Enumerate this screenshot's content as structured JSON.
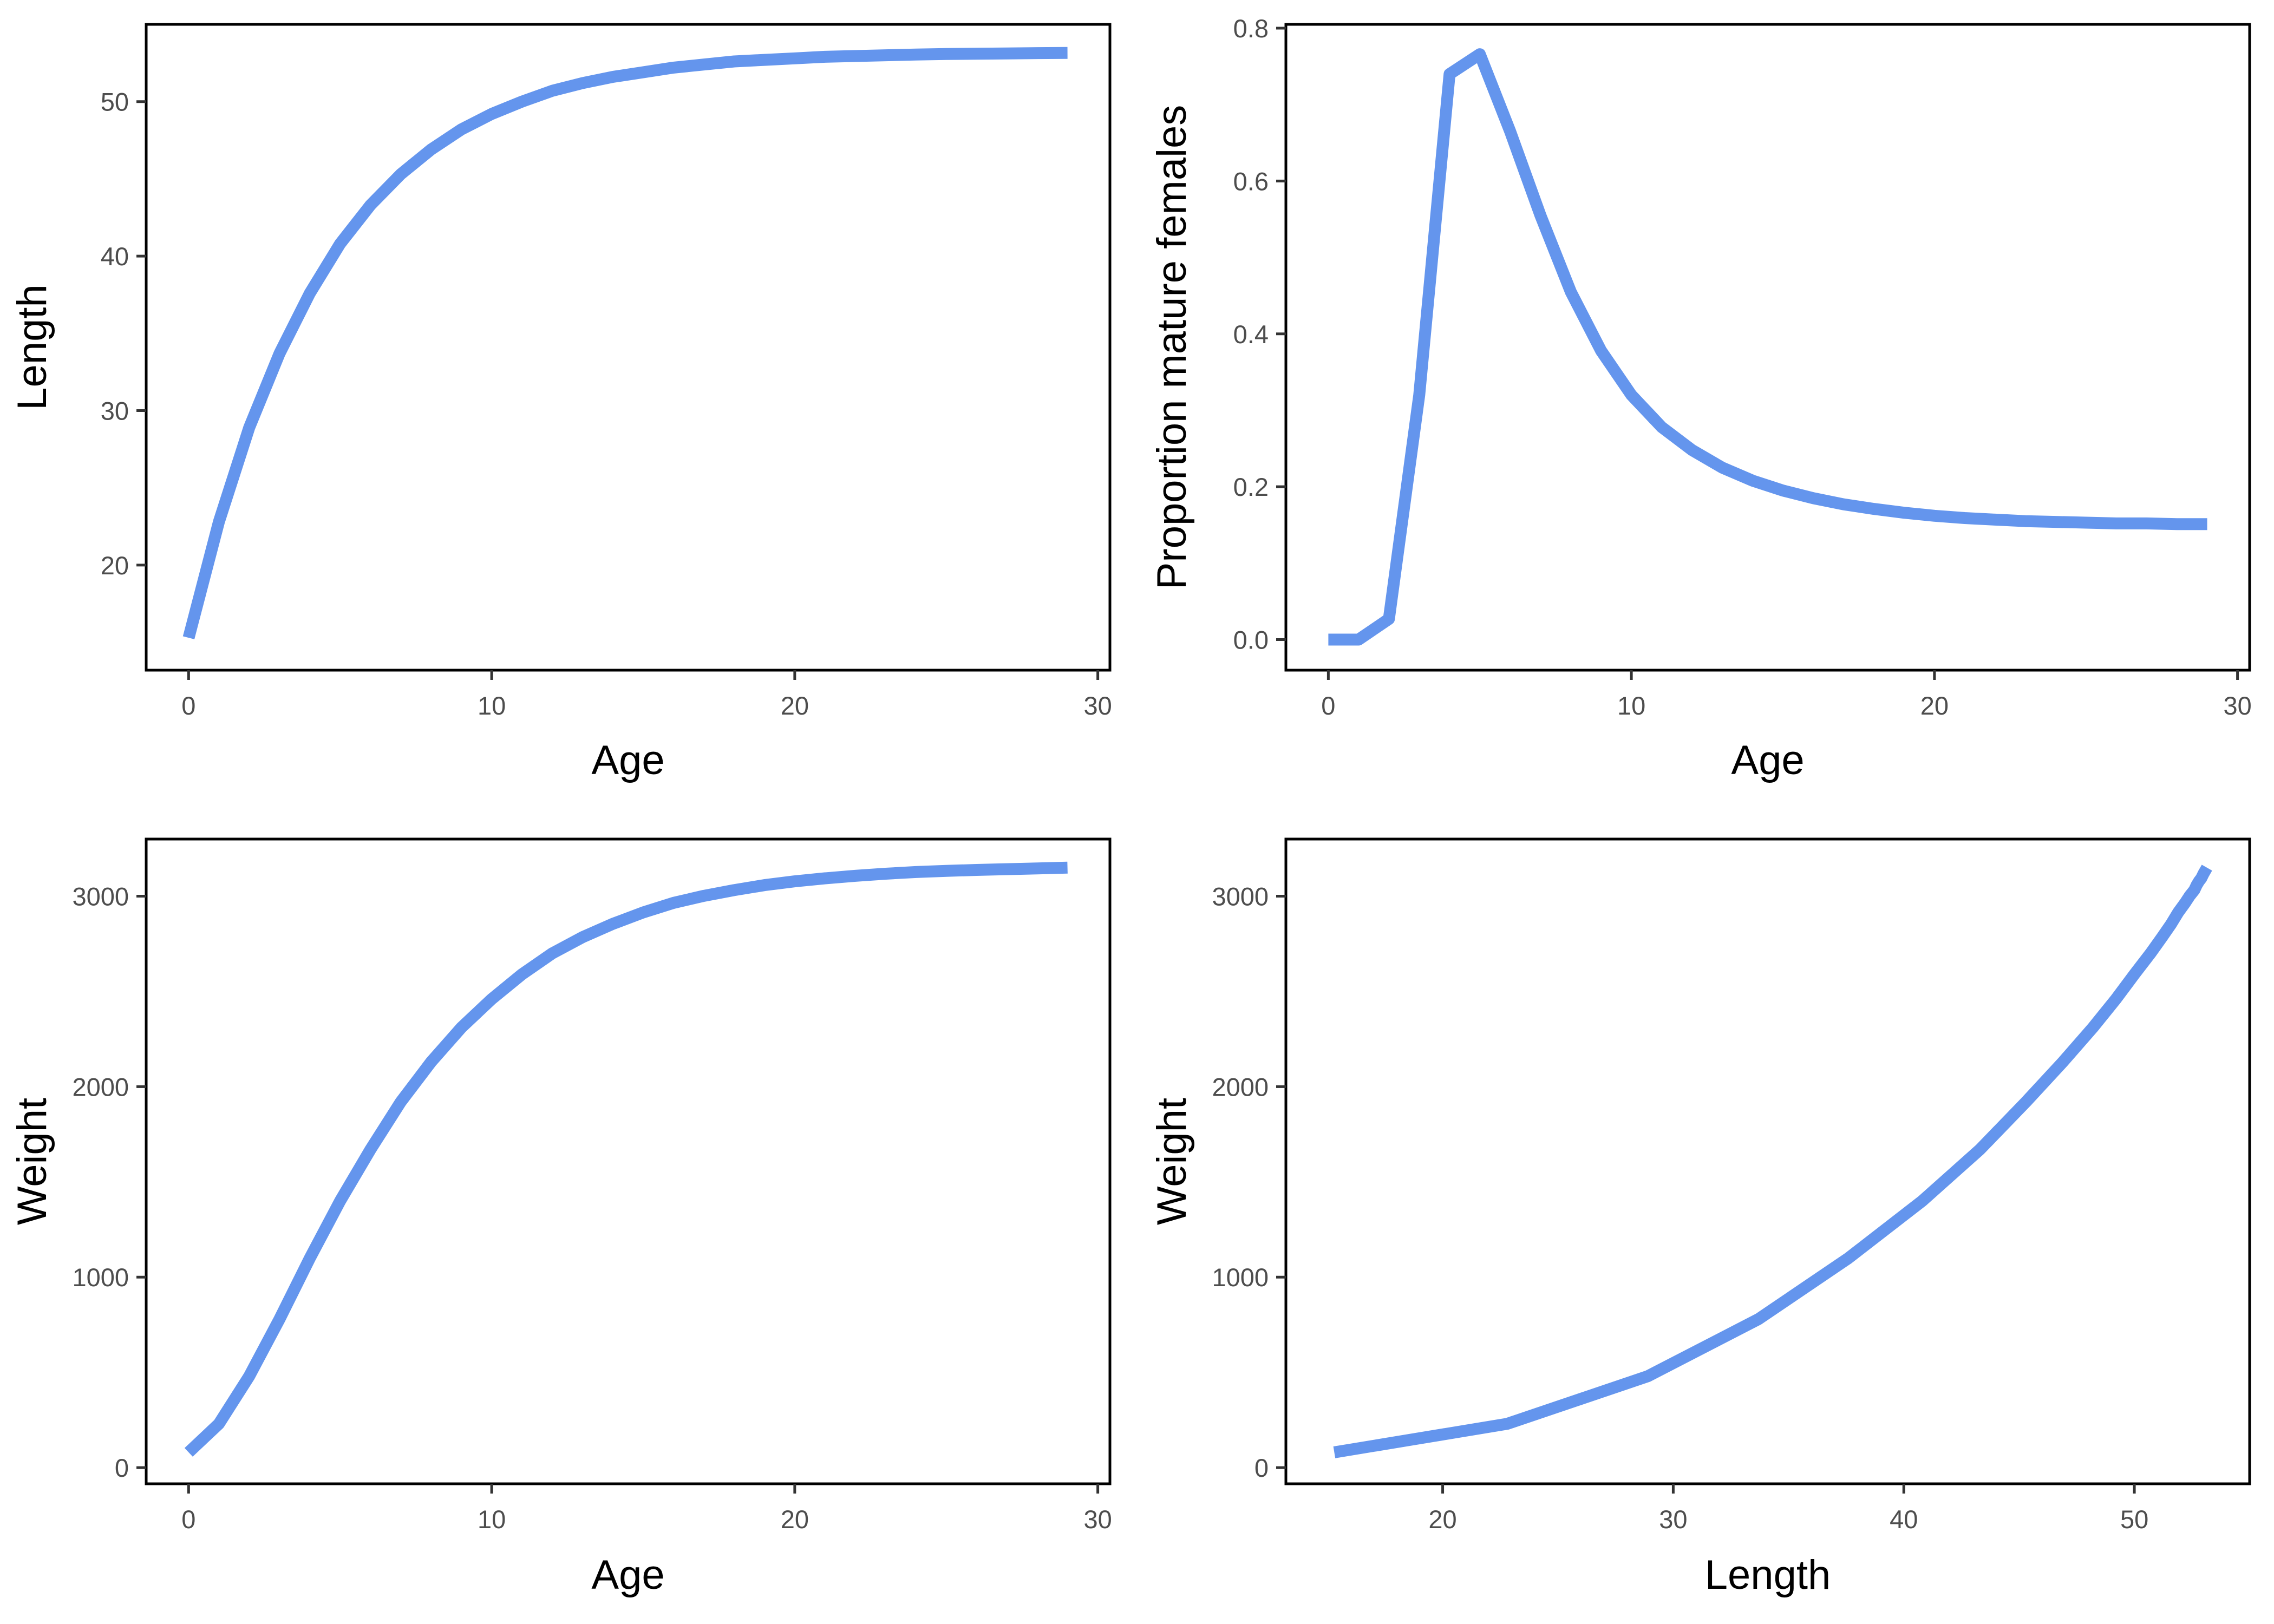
{
  "chart_data": [
    {
      "type": "line",
      "xlabel": "Age",
      "ylabel": "Length",
      "xlim": [
        -1.4,
        30.4
      ],
      "ylim": [
        13.2,
        55.0
      ],
      "xticks": [
        0,
        10,
        20,
        30
      ],
      "yticks": [
        20,
        30,
        40,
        50
      ],
      "grid": false,
      "series": [
        {
          "x": [
            0,
            1,
            2,
            3,
            4,
            5,
            6,
            7,
            8,
            9,
            10,
            11,
            12,
            13,
            14,
            15,
            16,
            17,
            18,
            19,
            20,
            21,
            22,
            23,
            24,
            25,
            26,
            27,
            28,
            29
          ],
          "y": [
            15.3,
            22.8,
            28.9,
            33.7,
            37.6,
            40.8,
            43.3,
            45.3,
            46.9,
            48.2,
            49.2,
            50.0,
            50.7,
            51.2,
            51.6,
            51.9,
            52.2,
            52.4,
            52.6,
            52.7,
            52.8,
            52.9,
            52.95,
            53.0,
            53.05,
            53.08,
            53.1,
            53.12,
            53.14,
            53.15
          ]
        }
      ]
    },
    {
      "type": "line",
      "xlabel": "Age",
      "ylabel": "Proportion mature females",
      "xlim": [
        -1.4,
        30.4
      ],
      "ylim": [
        -0.04,
        0.805
      ],
      "xticks": [
        0,
        10,
        20,
        30
      ],
      "yticks": [
        0.0,
        0.2,
        0.4,
        0.6,
        0.8
      ],
      "ytick_labels": [
        "0.0",
        "0.2",
        "0.4",
        "0.6",
        "0.8"
      ],
      "grid": false,
      "series": [
        {
          "x": [
            0,
            1,
            2,
            3,
            4,
            5,
            6,
            7,
            8,
            9,
            10,
            11,
            12,
            13,
            14,
            15,
            16,
            17,
            18,
            19,
            20,
            21,
            22,
            23,
            24,
            25,
            26,
            27,
            28,
            29
          ],
          "y": [
            0.0,
            0.0,
            0.027,
            0.32,
            0.74,
            0.766,
            0.665,
            0.555,
            0.455,
            0.378,
            0.32,
            0.278,
            0.248,
            0.225,
            0.208,
            0.195,
            0.185,
            0.177,
            0.171,
            0.166,
            0.162,
            0.159,
            0.157,
            0.155,
            0.154,
            0.153,
            0.152,
            0.152,
            0.151,
            0.151
          ]
        }
      ]
    },
    {
      "type": "line",
      "xlabel": "Age",
      "ylabel": "Weight",
      "xlim": [
        -1.4,
        30.4
      ],
      "ylim": [
        -85,
        3300
      ],
      "xticks": [
        0,
        10,
        20,
        30
      ],
      "yticks": [
        0,
        1000,
        2000,
        3000
      ],
      "grid": false,
      "series": [
        {
          "x": [
            0,
            1,
            2,
            3,
            4,
            5,
            6,
            7,
            8,
            9,
            10,
            11,
            12,
            13,
            14,
            15,
            16,
            17,
            18,
            19,
            20,
            21,
            22,
            23,
            24,
            25,
            26,
            27,
            28,
            29
          ],
          "y": [
            80,
            230,
            480,
            780,
            1100,
            1400,
            1670,
            1920,
            2130,
            2310,
            2460,
            2590,
            2700,
            2785,
            2855,
            2915,
            2965,
            3002,
            3032,
            3058,
            3078,
            3094,
            3107,
            3118,
            3127,
            3133,
            3138,
            3142,
            3146,
            3150
          ]
        }
      ]
    },
    {
      "type": "line",
      "xlabel": "Length",
      "ylabel": "Weight",
      "xlim": [
        13.2,
        55.0
      ],
      "ylim": [
        -85,
        3300
      ],
      "xticks": [
        20,
        30,
        40,
        50
      ],
      "yticks": [
        0,
        1000,
        2000,
        3000
      ],
      "grid": false,
      "series": [
        {
          "x": [
            15.3,
            22.8,
            28.9,
            33.7,
            37.6,
            40.8,
            43.3,
            45.3,
            46.9,
            48.2,
            49.2,
            50.0,
            50.7,
            51.2,
            51.6,
            51.9,
            52.2,
            52.4,
            52.6,
            52.7,
            52.8,
            52.9,
            53.0,
            53.15
          ],
          "y": [
            80,
            230,
            480,
            780,
            1100,
            1400,
            1670,
            1920,
            2130,
            2310,
            2460,
            2590,
            2700,
            2785,
            2855,
            2915,
            2965,
            3002,
            3032,
            3058,
            3078,
            3094,
            3118,
            3150
          ]
        }
      ]
    }
  ],
  "style": {
    "line_color": "#6495ED",
    "axis_color": "#000000",
    "tick_label_color": "#4d4d4d",
    "background": "#ffffff"
  }
}
